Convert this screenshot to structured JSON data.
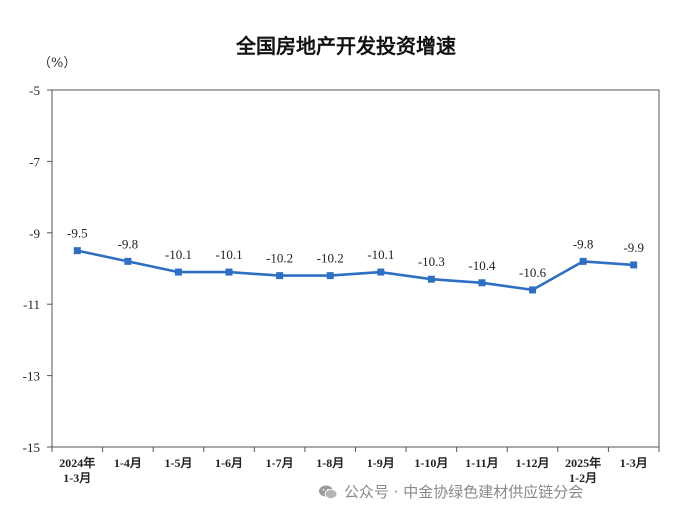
{
  "chart_data": {
    "type": "line",
    "title": "全国房地产开发投资增速",
    "unit_label": "（%）",
    "categories": [
      "2024年\n1-3月",
      "1-4月",
      "1-5月",
      "1-6月",
      "1-7月",
      "1-8月",
      "1-9月",
      "1-10月",
      "1-11月",
      "1-12月",
      "2025年\n1-2月",
      "1-3月"
    ],
    "series": [
      {
        "values": [
          -9.5,
          -9.8,
          -10.1,
          -10.1,
          -10.2,
          -10.2,
          -10.1,
          -10.3,
          -10.4,
          -10.6,
          -9.8,
          -9.9
        ]
      }
    ],
    "data_labels": [
      "-9.5",
      "-9.8",
      "-10.1",
      "-10.1",
      "-10.2",
      "-10.2",
      "-10.1",
      "-10.3",
      "-10.4",
      "-10.6",
      "-9.8",
      "-9.9"
    ],
    "ylim": [
      -15,
      -5
    ],
    "yticks": [
      -5,
      -7,
      -9,
      -11,
      -13,
      -15
    ],
    "ytick_labels": [
      "-5",
      "-7",
      "-9",
      "-11",
      "-13",
      "-15"
    ],
    "xlabel": "",
    "ylabel": "",
    "grid": false,
    "legend": false,
    "colors": {
      "line": "#2e6fc4",
      "axis": "#555555"
    }
  },
  "watermark": {
    "icon": "wechat-icon",
    "text": "公众号 · 中金协绿色建材供应链分会"
  }
}
